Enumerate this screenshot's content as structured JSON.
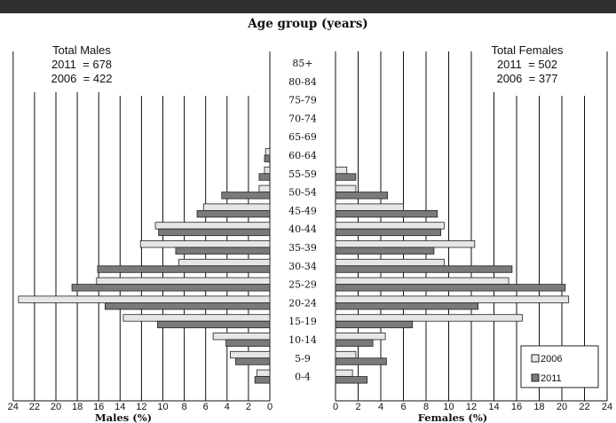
{
  "chart_data": {
    "type": "bar",
    "orientation": "horizontal-pyramid",
    "title": "Age group (years)",
    "categories": [
      "0-4",
      "5-9",
      "10-14",
      "15-19",
      "20-24",
      "25-29",
      "30-34",
      "35-39",
      "40-44",
      "45-49",
      "50-54",
      "55-59",
      "60-64",
      "65-69",
      "70-74",
      "75-79",
      "80-84",
      "85+"
    ],
    "males": {
      "xlabel": "Males (%)",
      "xlim": [
        0,
        24
      ],
      "ticks": [
        24,
        22,
        20,
        18,
        16,
        14,
        12,
        10,
        8,
        6,
        4,
        2,
        0
      ],
      "summary": [
        "Total Males",
        "2011  = 678",
        "2006  = 422"
      ],
      "series": [
        {
          "name": "2006",
          "values": [
            1.2,
            3.7,
            5.3,
            13.7,
            23.5,
            16.2,
            8.5,
            12.1,
            10.7,
            6.2,
            1.0,
            0.5,
            0.4,
            0,
            0,
            0,
            0,
            0
          ]
        },
        {
          "name": "2011",
          "values": [
            1.4,
            3.2,
            4.1,
            10.5,
            15.4,
            18.5,
            16.1,
            8.8,
            10.4,
            6.8,
            4.5,
            1.0,
            0.5,
            0,
            0,
            0,
            0,
            0
          ]
        }
      ]
    },
    "females": {
      "xlabel": "Females (%)",
      "xlim": [
        0,
        24
      ],
      "ticks": [
        0,
        2,
        4,
        6,
        8,
        10,
        12,
        14,
        16,
        18,
        20,
        22,
        24
      ],
      "summary": [
        "Total Females",
        "2011  = 502",
        "2006  = 377"
      ],
      "series": [
        {
          "name": "2006",
          "values": [
            1.5,
            1.8,
            4.4,
            16.5,
            20.6,
            15.3,
            9.6,
            12.3,
            9.6,
            6.0,
            1.8,
            1.0,
            0,
            0,
            0,
            0,
            0,
            0
          ]
        },
        {
          "name": "2011",
          "values": [
            2.8,
            4.5,
            3.3,
            6.8,
            12.6,
            20.3,
            15.6,
            8.7,
            9.3,
            9.0,
            4.6,
            1.8,
            0,
            0,
            0,
            0,
            0,
            0
          ]
        }
      ]
    },
    "legend": {
      "position": "bottom-right",
      "items": [
        "2006",
        "2011"
      ]
    },
    "colors": {
      "2006": "#e6e6e6",
      "2011": "#7a7a7a",
      "stroke": "#222222",
      "grid": "#111111"
    },
    "grid": true
  }
}
